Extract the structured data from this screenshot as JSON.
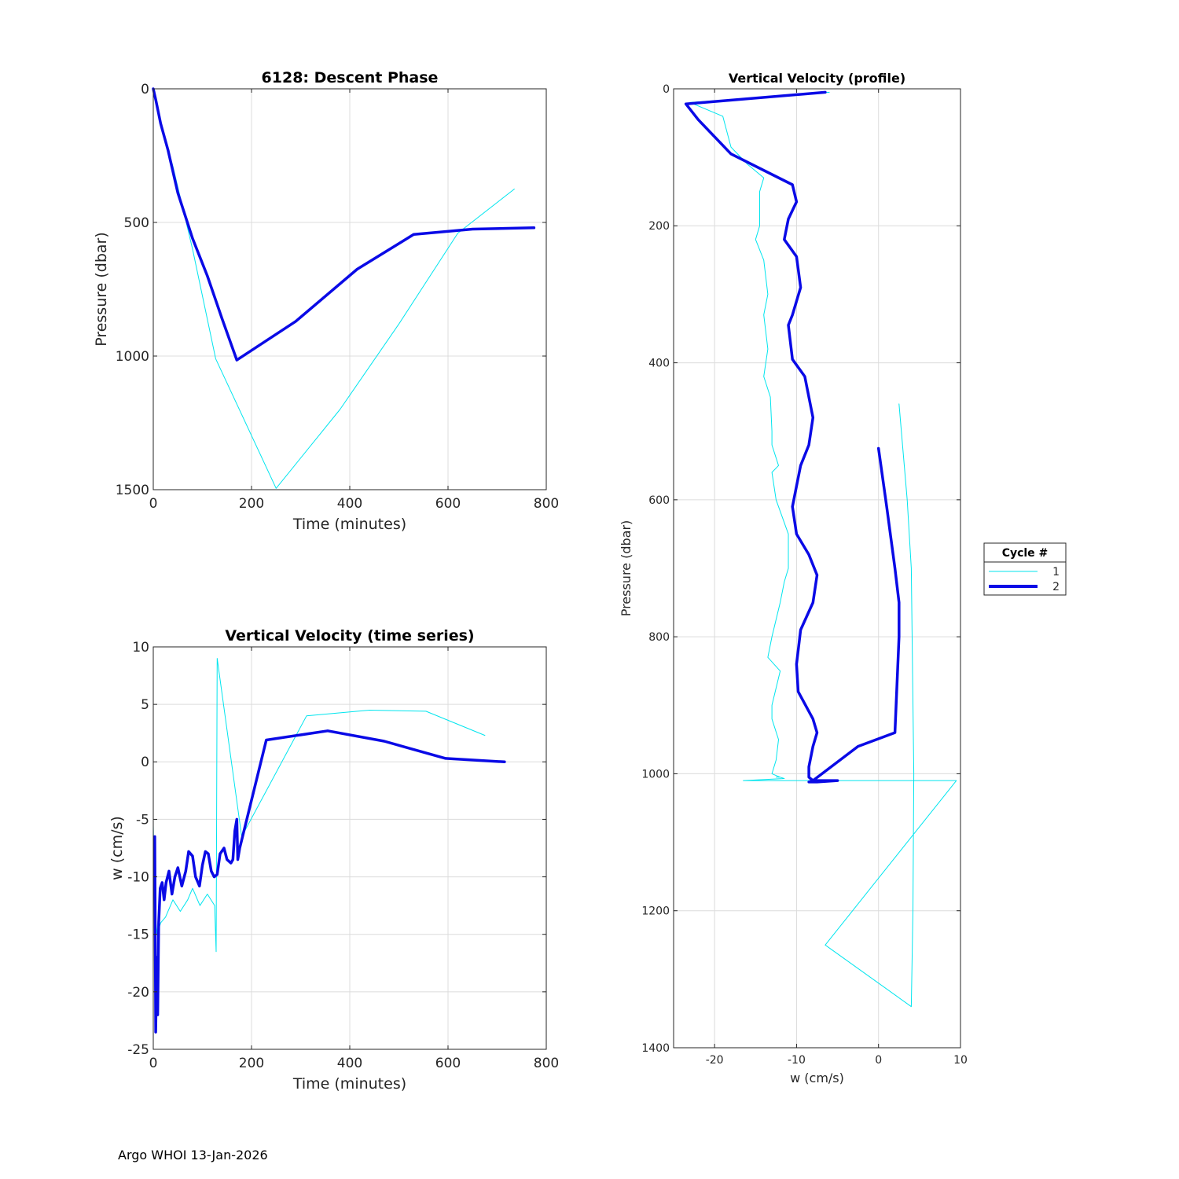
{
  "footer": "Argo WHOI 13-Jan-2026",
  "legend": {
    "title": "Cycle #",
    "entries": [
      {
        "label": "1",
        "color": "#00e5ee",
        "width": "thin"
      },
      {
        "label": "2",
        "color": "#0a0ae6",
        "width": "thick"
      }
    ],
    "placement": "right of profile panel"
  },
  "colors": {
    "cycle1": "#00e5ee",
    "cycle2": "#0a0ae6",
    "grid": "#dcdcdc",
    "axis": "#262626"
  },
  "chart_data": [
    {
      "id": "descent",
      "type": "line",
      "title": "6128: Descent Phase",
      "xlabel": "Time (minutes)",
      "ylabel": "Pressure (dbar)",
      "xlim": [
        0,
        800
      ],
      "ylim": [
        0,
        1500
      ],
      "y_reversed": true,
      "xticks": [
        0,
        200,
        400,
        600,
        800
      ],
      "yticks": [
        0,
        500,
        1000,
        1500
      ],
      "grid": true,
      "series": [
        {
          "name": "1",
          "x": [
            0,
            5,
            15,
            40,
            80,
            127,
            250,
            380,
            500,
            620,
            735
          ],
          "y": [
            0,
            50,
            130,
            290,
            600,
            1010,
            1495,
            1200,
            880,
            540,
            375
          ]
        },
        {
          "name": "2",
          "x": [
            0,
            5,
            15,
            30,
            50,
            80,
            110,
            140,
            170,
            290,
            415,
            530,
            650,
            775
          ],
          "y": [
            0,
            40,
            130,
            230,
            390,
            560,
            700,
            860,
            1015,
            870,
            675,
            545,
            525,
            520
          ]
        }
      ]
    },
    {
      "id": "vv_time",
      "type": "line",
      "title": "Vertical Velocity (time series)",
      "xlabel": "Time (minutes)",
      "ylabel": "w (cm/s)",
      "xlim": [
        0,
        800
      ],
      "ylim": [
        -25,
        10
      ],
      "xticks": [
        0,
        200,
        400,
        600,
        800
      ],
      "yticks": [
        -25,
        -20,
        -15,
        -10,
        -5,
        0,
        5,
        10
      ],
      "grid": true,
      "series": [
        {
          "name": "1",
          "x": [
            0,
            3,
            8,
            15,
            25,
            40,
            55,
            70,
            80,
            95,
            110,
            125,
            128,
            130,
            180,
            312,
            440,
            555,
            675
          ],
          "y": [
            -5.5,
            -13,
            -15,
            -14,
            -13.5,
            -12,
            -13,
            -12,
            -11,
            -12.5,
            -11.5,
            -12.5,
            -16.5,
            9,
            -6.5,
            4,
            4.5,
            4.4,
            2.3
          ]
        },
        {
          "name": "2",
          "x": [
            3,
            5,
            7,
            9,
            11,
            14,
            18,
            22,
            26,
            32,
            38,
            44,
            50,
            58,
            66,
            72,
            80,
            86,
            94,
            100,
            106,
            112,
            118,
            124,
            130,
            136,
            144,
            150,
            158,
            162,
            166,
            170,
            172,
            176,
            230,
            355,
            470,
            595,
            715
          ],
          "y": [
            -6.5,
            -23.5,
            -17,
            -22,
            -14,
            -11,
            -10.5,
            -12,
            -10.5,
            -9.5,
            -11.5,
            -10,
            -9.2,
            -10.8,
            -9.5,
            -7.8,
            -8.2,
            -10,
            -10.8,
            -9,
            -7.8,
            -8,
            -9.5,
            -10,
            -9.8,
            -8,
            -7.5,
            -8.5,
            -8.8,
            -8.5,
            -6,
            -5,
            -8.5,
            -7.5,
            1.9,
            2.7,
            1.8,
            0.3,
            0
          ]
        }
      ]
    },
    {
      "id": "vv_profile",
      "type": "line",
      "title": "Vertical Velocity (profile)",
      "xlabel": "w (cm/s)",
      "ylabel": "Pressure (dbar)",
      "xlim": [
        -25,
        10
      ],
      "ylim": [
        0,
        1400
      ],
      "y_reversed": true,
      "xticks": [
        -20,
        -10,
        0,
        10
      ],
      "yticks": [
        0,
        200,
        400,
        600,
        800,
        1000,
        1200,
        1400
      ],
      "grid": true,
      "series": [
        {
          "name": "1",
          "x": [
            -6,
            -23,
            -19,
            -18,
            -16,
            -14,
            -14.5,
            -14.5,
            -15,
            -14,
            -13.5,
            -14,
            -13.5,
            -14,
            -13.2,
            -13,
            -13,
            -12.2,
            -13,
            -12.5,
            -11,
            -11,
            -11.5,
            -12,
            -13,
            -13.5,
            -12,
            -13,
            -13,
            -12.2,
            -12.5,
            -13,
            -12,
            -12.5,
            -12.5,
            -12,
            -11.5,
            -16.5,
            9.5,
            -6.5,
            4,
            4.2,
            4.3,
            4,
            3.5,
            2.5
          ],
          "y": [
            5,
            20,
            40,
            85,
            110,
            130,
            150,
            200,
            220,
            250,
            300,
            330,
            380,
            420,
            450,
            500,
            520,
            550,
            560,
            600,
            650,
            700,
            720,
            750,
            800,
            830,
            850,
            900,
            920,
            950,
            980,
            1000,
            1005,
            1005,
            1005,
            1005,
            1007,
            1010,
            1010,
            1250,
            1340,
            1200,
            1000,
            700,
            600,
            460
          ]
        },
        {
          "name": "2",
          "x": [
            -6.5,
            -23.5,
            -22,
            -18,
            -10.5,
            -10,
            -11,
            -11.5,
            -10,
            -9.5,
            -10.5,
            -11,
            -10.5,
            -9,
            -8,
            -8.5,
            -9.5,
            -10,
            -10.5,
            -10,
            -8.5,
            -7.5,
            -8,
            -9.5,
            -10,
            -9.8,
            -8,
            -7.5,
            -8,
            -8.5,
            -8.5,
            -8,
            -8.5,
            -7.5,
            -5,
            -8,
            -2.5,
            2,
            2.5,
            2.5,
            2,
            1,
            0
          ],
          "y": [
            5,
            22,
            45,
            95,
            140,
            165,
            190,
            220,
            245,
            290,
            330,
            345,
            395,
            420,
            480,
            520,
            550,
            580,
            610,
            650,
            680,
            710,
            750,
            790,
            840,
            880,
            920,
            940,
            960,
            990,
            1005,
            1010,
            1012,
            1012,
            1010,
            1010,
            960,
            940,
            800,
            750,
            700,
            610,
            525
          ]
        }
      ]
    }
  ]
}
